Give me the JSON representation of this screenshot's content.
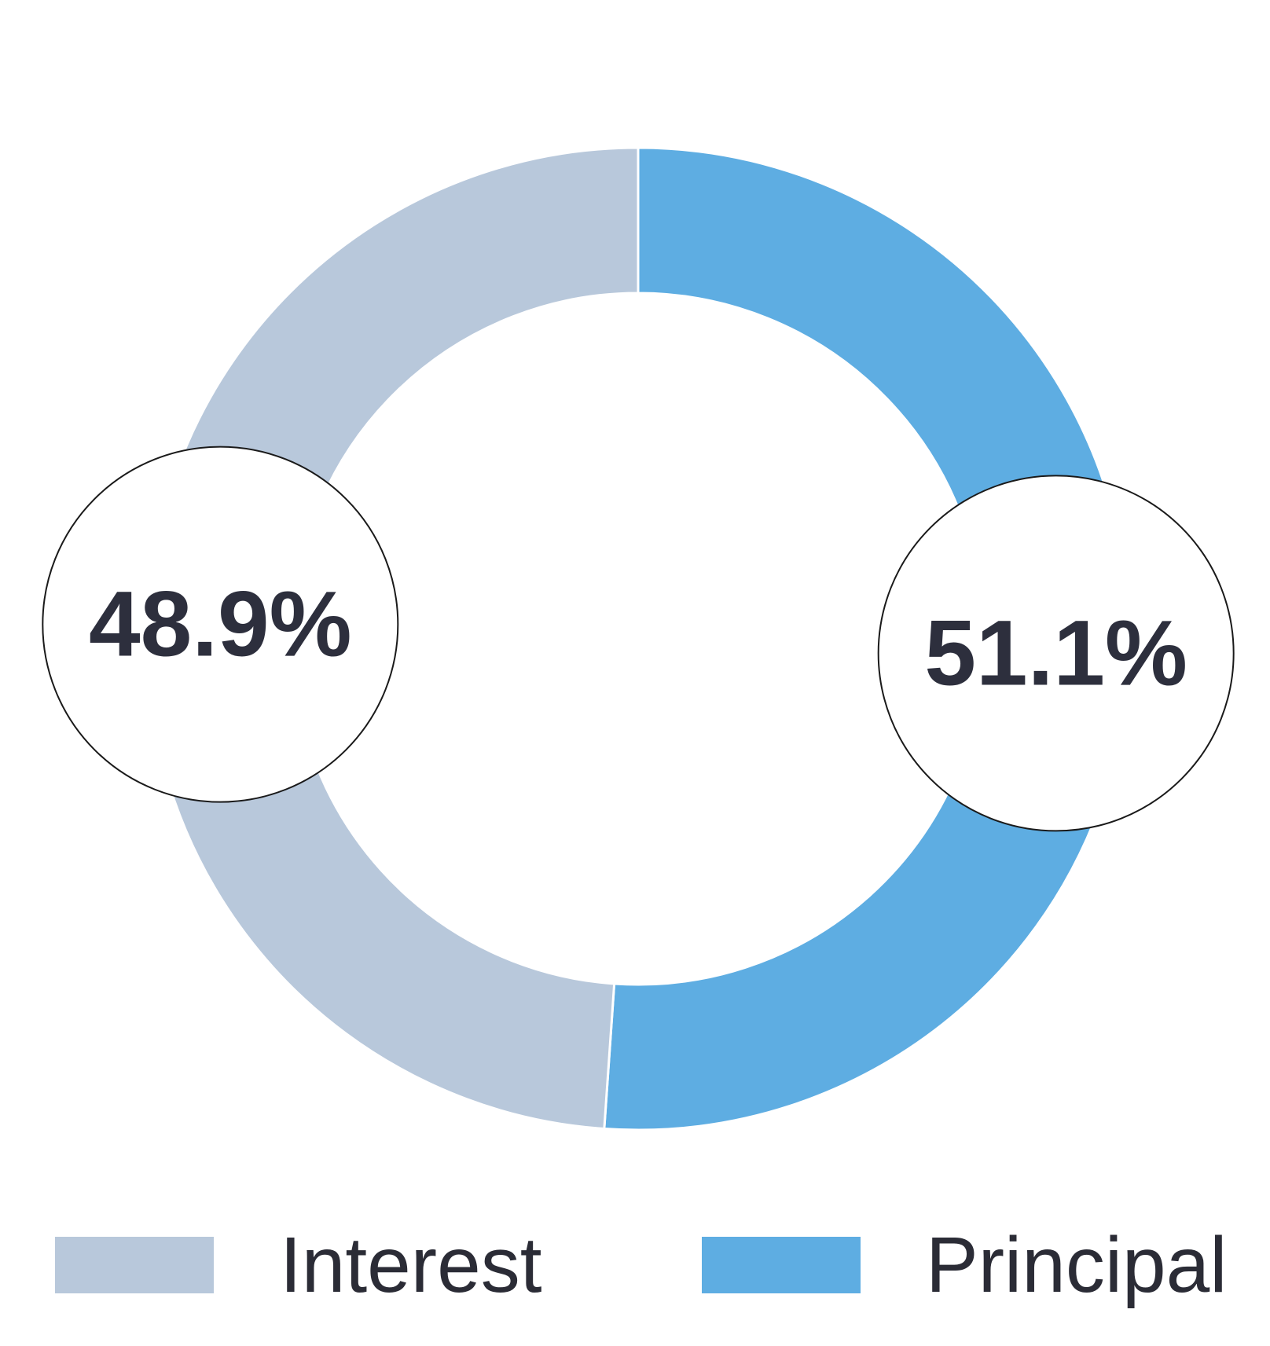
{
  "chart_data": {
    "type": "pie",
    "variant": "donut",
    "start_angle_deg": 0,
    "direction": "clockwise",
    "slices": [
      {
        "label": "Principal",
        "value": 51.1,
        "display": "51.1%",
        "color": "#5eade2"
      },
      {
        "label": "Interest",
        "value": 48.9,
        "display": "48.9%",
        "color": "#b8c8db"
      }
    ],
    "legend": {
      "placement": "bottom",
      "items": [
        {
          "label": "Interest",
          "color": "#b8c8db"
        },
        {
          "label": "Principal",
          "color": "#5eade2"
        }
      ]
    },
    "title": ""
  }
}
